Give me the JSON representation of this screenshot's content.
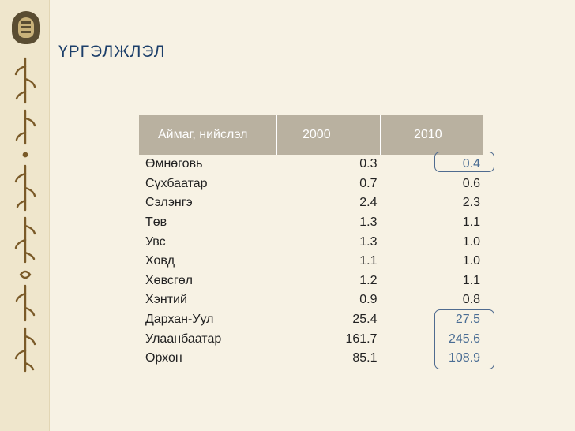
{
  "slide": {
    "title": "ҮРГЭЛЖЛЭЛ",
    "colors": {
      "title": "#1c3f6a",
      "header_bg": "#b9b1a0",
      "highlight": "#4f6b8f",
      "background": "#f7f2e4"
    }
  },
  "table": {
    "headers": [
      "Аймаг, нийслэл",
      "2000",
      "2010"
    ],
    "rows": [
      {
        "name": "Өмнөговь",
        "v2000": "0.3",
        "v2010": "0.4"
      },
      {
        "name": "Сүхбаатар",
        "v2000": "0.7",
        "v2010": "0.6"
      },
      {
        "name": "Сэлэнгэ",
        "v2000": "2.4",
        "v2010": "2.3"
      },
      {
        "name": "Төв",
        "v2000": "1.3",
        "v2010": "1.1"
      },
      {
        "name": "Увс",
        "v2000": "1.3",
        "v2010": "1.0"
      },
      {
        "name": "Ховд",
        "v2000": "1.1",
        "v2010": "1.0"
      },
      {
        "name": "Хөвсгөл",
        "v2000": "1.2",
        "v2010": "1.1"
      },
      {
        "name": "Хэнтий",
        "v2000": "0.9",
        "v2010": "0.8"
      },
      {
        "name": "Дархан-Уул",
        "v2000": "25.4",
        "v2010": "27.5"
      },
      {
        "name": "Улаанбаатар",
        "v2000": "161.7",
        "v2010": "245.6"
      },
      {
        "name": "Орхон",
        "v2000": "85.1",
        "v2010": "108.9"
      }
    ]
  }
}
